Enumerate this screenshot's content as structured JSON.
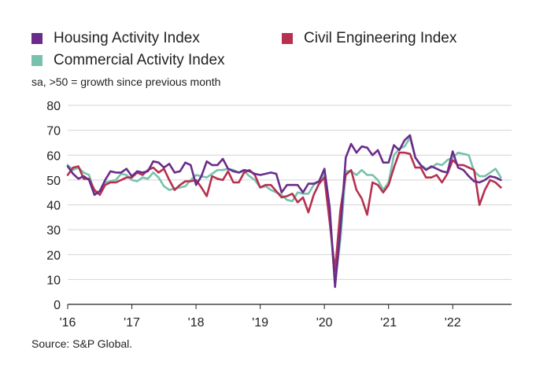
{
  "chart_data": {
    "type": "line",
    "subtitle": "sa, >50 = growth since previous month",
    "source": "Source: S&P Global.",
    "ylim": [
      0,
      80
    ],
    "yticks": [
      0,
      10,
      20,
      30,
      40,
      50,
      60,
      70,
      80
    ],
    "xlim": [
      2016.0,
      2022.917
    ],
    "xticks": [
      {
        "value": 2016,
        "label": "'16"
      },
      {
        "value": 2017,
        "label": "'17"
      },
      {
        "value": 2018,
        "label": "'18"
      },
      {
        "value": 2019,
        "label": "'19"
      },
      {
        "value": 2020,
        "label": "'20"
      },
      {
        "value": 2021,
        "label": "'21"
      },
      {
        "value": 2022,
        "label": "'22"
      }
    ],
    "grid": true,
    "legend_position": "top",
    "x_start": "2016-01",
    "x_frequency": "monthly",
    "series": [
      {
        "name": "Housing Activity Index",
        "color": "#6a2c8a",
        "values": [
          55.5,
          52.5,
          50.5,
          51.5,
          50.0,
          44.0,
          45.5,
          50.0,
          53.5,
          53.0,
          53.0,
          54.5,
          51.5,
          53.5,
          53.0,
          53.5,
          57.5,
          57.0,
          55.0,
          56.5,
          53.0,
          53.5,
          57.0,
          56.0,
          48.0,
          51.5,
          57.5,
          56.0,
          56.0,
          58.5,
          54.5,
          53.5,
          53.0,
          54.0,
          53.5,
          52.5,
          52.0,
          52.5,
          53.0,
          52.5,
          45.0,
          48.0,
          48.0,
          48.0,
          45.0,
          48.5,
          48.5,
          49.5,
          54.5,
          39.0,
          7.0,
          30.0,
          59.0,
          64.5,
          61.0,
          63.5,
          63.0,
          60.0,
          62.0,
          57.0,
          57.0,
          64.0,
          62.0,
          66.0,
          68.0,
          59.0,
          56.0,
          54.0,
          55.5,
          54.5,
          53.5,
          53.0,
          61.5,
          55.0,
          54.0,
          51.5,
          49.5,
          49.0,
          50.0,
          51.5,
          51.0,
          50.0
        ]
      },
      {
        "name": "Civil Engineering Index",
        "color": "#b5314f",
        "values": [
          52.0,
          55.0,
          55.5,
          50.5,
          50.5,
          46.0,
          44.0,
          48.0,
          49.0,
          49.0,
          50.0,
          51.0,
          51.0,
          53.0,
          52.0,
          54.0,
          55.0,
          53.0,
          54.5,
          50.0,
          46.0,
          48.0,
          49.5,
          49.5,
          50.0,
          47.0,
          43.5,
          51.5,
          50.5,
          50.0,
          53.5,
          49.0,
          49.0,
          53.0,
          54.0,
          52.0,
          47.0,
          48.0,
          48.0,
          45.5,
          43.0,
          43.5,
          44.5,
          41.0,
          43.0,
          37.0,
          44.0,
          48.5,
          51.0,
          33.0,
          13.5,
          38.0,
          52.0,
          54.0,
          46.0,
          42.5,
          36.0,
          49.0,
          48.0,
          45.0,
          48.0,
          55.0,
          61.0,
          61.0,
          60.5,
          55.0,
          55.0,
          51.0,
          51.0,
          52.0,
          49.0,
          52.5,
          58.0,
          56.0,
          56.0,
          55.0,
          54.0,
          40.0,
          46.0,
          50.0,
          49.0,
          47.0
        ]
      },
      {
        "name": "Commercial Activity Index",
        "color": "#78c2ad",
        "values": [
          56.0,
          54.0,
          55.0,
          53.0,
          52.0,
          45.0,
          45.5,
          49.0,
          49.5,
          50.0,
          52.5,
          52.0,
          50.0,
          49.5,
          51.0,
          50.5,
          53.0,
          51.0,
          47.5,
          46.0,
          46.5,
          47.0,
          47.5,
          50.0,
          52.0,
          51.5,
          51.0,
          52.5,
          54.0,
          54.0,
          54.5,
          54.0,
          53.0,
          53.5,
          51.5,
          50.0,
          47.0,
          47.5,
          46.0,
          45.0,
          44.0,
          42.0,
          41.5,
          45.0,
          44.5,
          44.5,
          48.0,
          49.5,
          52.5,
          35.0,
          8.5,
          26.0,
          53.5,
          53.5,
          52.0,
          54.0,
          52.0,
          52.0,
          50.0,
          46.0,
          49.0,
          60.0,
          62.5,
          63.5,
          67.0,
          59.0,
          56.0,
          54.5,
          55.0,
          56.5,
          56.0,
          58.0,
          59.0,
          61.0,
          60.5,
          60.0,
          53.5,
          51.5,
          51.5,
          53.0,
          54.5,
          51.0
        ]
      }
    ]
  }
}
